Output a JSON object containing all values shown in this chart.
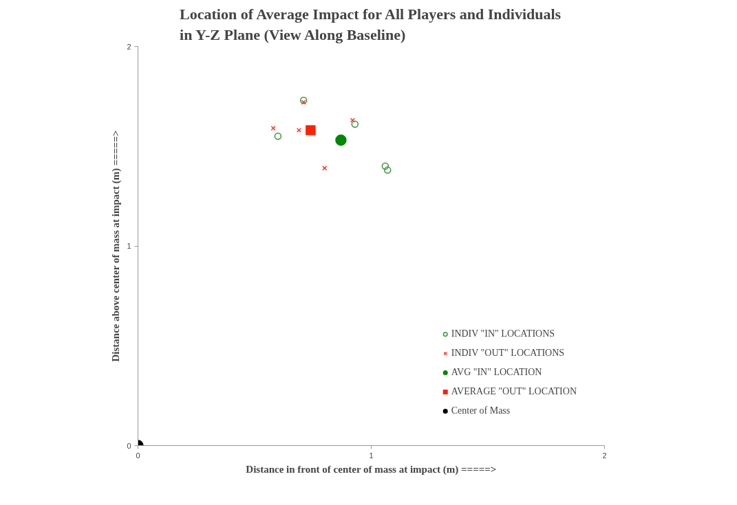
{
  "chart_data": {
    "type": "scatter",
    "title": "Location of Average Impact for All Players and Individuals\nin Y-Z Plane (View Along Baseline)",
    "xlabel": "Distance in front of center of mass at impact (m) =====>",
    "ylabel": "Distance above center of mass at impact (m) =====>",
    "xlim": [
      0,
      2
    ],
    "ylim": [
      0,
      2
    ],
    "xticks": [
      0,
      1,
      2
    ],
    "yticks": [
      0,
      1,
      2
    ],
    "grid": false,
    "legend": "bottom right",
    "series": [
      {
        "name": "INDIV \"IN\" LOCATIONS",
        "color": "#339933",
        "marker": "circle",
        "x": [
          0.71,
          0.93,
          0.6,
          1.06,
          1.07
        ],
        "values": [
          1.73,
          1.61,
          1.55,
          1.4,
          1.38
        ]
      },
      {
        "name": "INDIV \"OUT\" LOCATIONS",
        "color": "#ff3322",
        "marker": "cross",
        "x": [
          0.71,
          0.92,
          0.58,
          0.69,
          0.8
        ],
        "values": [
          1.72,
          1.63,
          1.59,
          1.58,
          1.39
        ]
      },
      {
        "name": "AVG \"IN\" LOCATION",
        "color": "#008800",
        "marker": "circle",
        "x": [
          0.87
        ],
        "values": [
          1.53
        ]
      },
      {
        "name": "AVERAGE \"OUT\" LOCATION",
        "color": "#ff2200",
        "marker": "square",
        "x": [
          0.74
        ],
        "values": [
          1.58
        ]
      },
      {
        "name": "Center of Mass",
        "color": "#000000",
        "marker": "circle",
        "x": [
          0
        ],
        "values": [
          0
        ]
      }
    ]
  }
}
